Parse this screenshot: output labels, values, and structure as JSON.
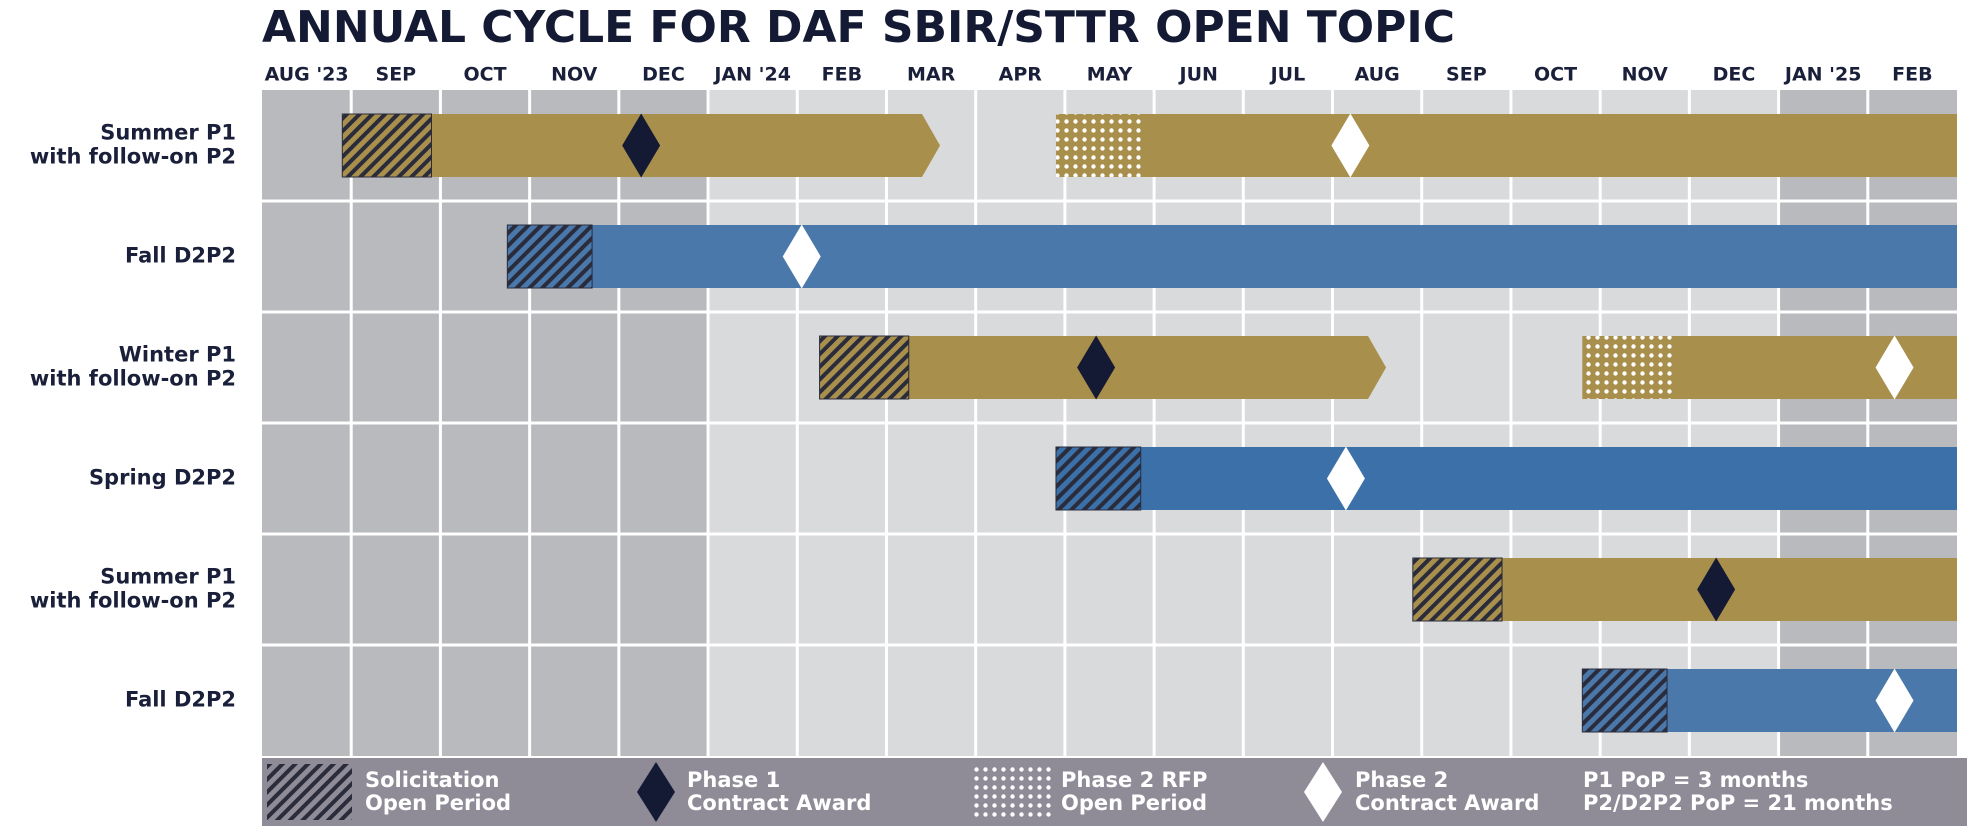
{
  "chart_data": {
    "type": "gantt",
    "title": "ANNUAL CYCLE FOR DAF SBIR/STTR OPEN TOPIC",
    "categories": [
      "AUG '23",
      "SEP",
      "OCT",
      "NOV",
      "DEC",
      "JAN '24",
      "FEB",
      "MAR",
      "APR",
      "MAY",
      "JUN",
      "JUL",
      "AUG",
      "SEP",
      "OCT",
      "NOV",
      "DEC",
      "JAN '25",
      "FEB"
    ],
    "shaded_months": [
      0,
      1,
      2,
      3,
      4,
      17,
      18
    ],
    "xlim": [
      0,
      19
    ],
    "rows": [
      {
        "label": [
          "Summer P1",
          "with follow-on P2"
        ],
        "color": "#a98f4c",
        "solicitation": [
          0.9,
          1.9
        ],
        "phase1_end": 7.6,
        "phase1_award": 4.25,
        "phase2_rfp": [
          8.9,
          9.85
        ],
        "phase2_end": 19,
        "phase2_award": 12.2
      },
      {
        "label": [
          "Fall D2P2"
        ],
        "color": "#4a78ab",
        "solicitation": [
          2.75,
          3.7
        ],
        "phase2_end": 19,
        "phase2_award": 6.05
      },
      {
        "label": [
          "Winter P1",
          "with follow-on P2"
        ],
        "color": "#a98f4c",
        "solicitation": [
          6.25,
          7.25
        ],
        "phase1_end": 12.6,
        "phase1_award": 9.35,
        "phase2_rfp": [
          14.8,
          15.85
        ],
        "phase2_end": 19,
        "phase2_award": 18.3
      },
      {
        "label": [
          "Spring D2P2"
        ],
        "color": "#3b71a8",
        "solicitation": [
          8.9,
          9.85
        ],
        "phase2_end": 19,
        "phase2_award": 12.15
      },
      {
        "label": [
          "Summer P1",
          "with follow-on P2"
        ],
        "color": "#a98f4c",
        "solicitation": [
          12.9,
          13.9
        ],
        "phase1_end": 19,
        "phase1_award": 16.3
      },
      {
        "label": [
          "Fall D2P2"
        ],
        "color": "#4a78ab",
        "solicitation": [
          14.8,
          15.75
        ],
        "phase2_end": 19,
        "phase2_award": 18.3
      }
    ],
    "legend": [
      {
        "label": [
          "Solicitation",
          "Open Period"
        ]
      },
      {
        "label": [
          "Phase 1",
          "Contract Award"
        ]
      },
      {
        "label": [
          "Phase 2 RFP",
          "Open Period"
        ]
      },
      {
        "label": [
          "Phase 2",
          "Contract Award"
        ]
      }
    ],
    "notes": [
      "P1 PoP = 3 months",
      "P2/D2P2 PoP = 21 months"
    ]
  }
}
